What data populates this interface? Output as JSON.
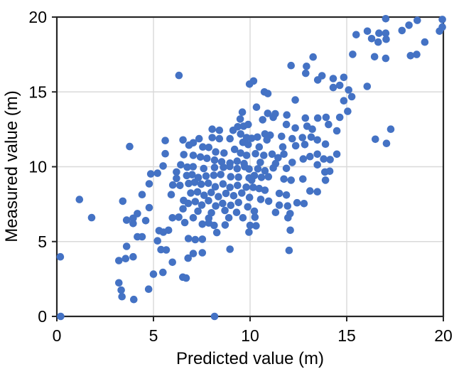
{
  "chart_data": {
    "type": "scatter",
    "title": "",
    "xlabel": "Predicted value (m)",
    "ylabel": "Measured value (m)",
    "xlim": [
      0,
      20
    ],
    "ylim": [
      0,
      20
    ],
    "x_ticks": [
      "0",
      "5",
      "10",
      "15",
      "20"
    ],
    "y_ticks": [
      "0",
      "5",
      "10",
      "15",
      "20"
    ],
    "grid": true,
    "legend": false,
    "marker": "circle",
    "marker_radius": 5.3,
    "colors": {
      "point": "#4472C4",
      "grid": "#D9D9D9",
      "axis": "#262626",
      "text": "#000000"
    },
    "points": [
      [
        0.2,
        0.0
      ],
      [
        0.18,
        3.98
      ],
      [
        1.17,
        7.81
      ],
      [
        1.8,
        6.6
      ],
      [
        8.16,
        0.0
      ],
      [
        6.32,
        16.1
      ],
      [
        12.12,
        16.76
      ],
      [
        12.92,
        16.71
      ],
      [
        13.26,
        17.33
      ],
      [
        12.88,
        16.24
      ],
      [
        9.97,
        15.52
      ],
      [
        10.18,
        15.73
      ],
      [
        10.74,
        15.0
      ],
      [
        10.92,
        14.89
      ],
      [
        12.34,
        14.46
      ],
      [
        10.33,
        13.98
      ],
      [
        9.6,
        13.65
      ],
      [
        10.91,
        13.57
      ],
      [
        11.3,
        13.54
      ],
      [
        11.9,
        13.46
      ],
      [
        17.02,
        19.89
      ],
      [
        18.65,
        19.78
      ],
      [
        19.95,
        19.84
      ],
      [
        19.95,
        19.33
      ],
      [
        18.22,
        19.46
      ],
      [
        17.86,
        19.1
      ],
      [
        19.8,
        19.06
      ],
      [
        15.49,
        18.82
      ],
      [
        16.07,
        19.06
      ],
      [
        16.67,
        18.92
      ],
      [
        17.02,
        18.92
      ],
      [
        16.29,
        18.56
      ],
      [
        16.63,
        18.33
      ],
      [
        17.04,
        18.52
      ],
      [
        19.04,
        18.33
      ],
      [
        15.31,
        17.51
      ],
      [
        16.44,
        17.35
      ],
      [
        17.02,
        17.24
      ],
      [
        18.3,
        17.42
      ],
      [
        18.62,
        17.5
      ],
      [
        13.72,
        16.08
      ],
      [
        13.5,
        15.8
      ],
      [
        14.3,
        15.89
      ],
      [
        14.85,
        15.97
      ],
      [
        14.64,
        15.44
      ],
      [
        14.3,
        15.29
      ],
      [
        15.1,
        15.13
      ],
      [
        16.06,
        15.37
      ],
      [
        15.26,
        14.68
      ],
      [
        14.85,
        14.41
      ],
      [
        15.05,
        13.7
      ],
      [
        13.5,
        13.25
      ],
      [
        13.93,
        13.3
      ],
      [
        14.64,
        13.3
      ],
      [
        14.06,
        12.82
      ],
      [
        14.49,
        12.4
      ],
      [
        13.48,
        11.79
      ],
      [
        13.9,
        11.51
      ],
      [
        16.48,
        11.84
      ],
      [
        17.28,
        12.51
      ],
      [
        17.06,
        11.56
      ],
      [
        13.48,
        10.84
      ],
      [
        13.81,
        10.52
      ],
      [
        14.14,
        10.48
      ],
      [
        14.49,
        10.84
      ],
      [
        13.48,
        10.13
      ],
      [
        13.87,
        9.65
      ],
      [
        14.12,
        9.7
      ],
      [
        13.9,
        9.1
      ],
      [
        13.48,
        8.33
      ],
      [
        3.77,
        11.35
      ],
      [
        5.61,
        11.75
      ],
      [
        6.53,
        11.79
      ],
      [
        5.61,
        10.87
      ],
      [
        6.57,
        10.81
      ],
      [
        5.5,
        10.05
      ],
      [
        6.41,
        10.13
      ],
      [
        4.86,
        9.52
      ],
      [
        5.21,
        9.57
      ],
      [
        6.19,
        9.65
      ],
      [
        6.19,
        9.22
      ],
      [
        4.78,
        8.86
      ],
      [
        6.0,
        8.78
      ],
      [
        6.37,
        8.75
      ],
      [
        5.92,
        8.14
      ],
      [
        4.41,
        8.14
      ],
      [
        3.41,
        7.7
      ],
      [
        6.56,
        7.75
      ],
      [
        4.78,
        7.27
      ],
      [
        4.17,
        6.87
      ],
      [
        6.53,
        7.19
      ],
      [
        3.61,
        6.43
      ],
      [
        3.95,
        6.56
      ],
      [
        3.95,
        6.21
      ],
      [
        4.6,
        6.4
      ],
      [
        5.98,
        6.59
      ],
      [
        6.31,
        6.63
      ],
      [
        6.62,
        6.27
      ],
      [
        4.17,
        5.32
      ],
      [
        4.41,
        5.32
      ],
      [
        5.29,
        5.73
      ],
      [
        5.51,
        5.63
      ],
      [
        5.78,
        5.76
      ],
      [
        5.21,
        5.05
      ],
      [
        5.39,
        4.46
      ],
      [
        5.66,
        4.44
      ],
      [
        3.61,
        4.68
      ],
      [
        3.21,
        3.73
      ],
      [
        3.56,
        3.86
      ],
      [
        3.95,
        3.98
      ],
      [
        5.98,
        3.62
      ],
      [
        6.52,
        2.62
      ],
      [
        5.0,
        2.82
      ],
      [
        5.49,
        2.94
      ],
      [
        3.21,
        2.24
      ],
      [
        3.33,
        1.76
      ],
      [
        3.37,
        1.32
      ],
      [
        3.98,
        1.13
      ],
      [
        4.75,
        1.82
      ],
      [
        7.06,
        6.59
      ],
      [
        7.86,
        6.56
      ],
      [
        8.9,
        6.59
      ],
      [
        9.63,
        6.59
      ],
      [
        10.25,
        6.63
      ],
      [
        11.96,
        6.59
      ],
      [
        7.53,
        6.16
      ],
      [
        7.86,
        6.24
      ],
      [
        8.14,
        6.08
      ],
      [
        8.71,
        6.11
      ],
      [
        10.0,
        6.08
      ],
      [
        10.31,
        6.05
      ],
      [
        8.28,
        5.6
      ],
      [
        9.94,
        5.63
      ],
      [
        12.08,
        5.76
      ],
      [
        6.81,
        5.2
      ],
      [
        7.16,
        5.13
      ],
      [
        7.53,
        5.16
      ],
      [
        8.96,
        4.49
      ],
      [
        12.02,
        4.41
      ],
      [
        7.06,
        4.2
      ],
      [
        7.53,
        4.25
      ],
      [
        6.79,
        3.89
      ],
      [
        6.69,
        2.56
      ],
      [
        8.04,
        12.51
      ],
      [
        8.41,
        12.43
      ],
      [
        8.04,
        11.95
      ],
      [
        8.41,
        11.87
      ],
      [
        7.36,
        11.87
      ],
      [
        7.06,
        11.6
      ],
      [
        6.84,
        11.44
      ],
      [
        7.55,
        11.32
      ],
      [
        7.86,
        11.29
      ],
      [
        8.22,
        10.99
      ],
      [
        8.65,
        10.91
      ],
      [
        8.96,
        11.87
      ],
      [
        9.12,
        12.43
      ],
      [
        9.36,
        12.67
      ],
      [
        9.66,
        12.71
      ],
      [
        9.9,
        12.82
      ],
      [
        9.51,
        12.19
      ],
      [
        9.82,
        11.95
      ],
      [
        9.63,
        11.63
      ],
      [
        9.9,
        11.48
      ],
      [
        9.2,
        11.16
      ],
      [
        9.51,
        10.91
      ],
      [
        9.82,
        10.76
      ],
      [
        7.06,
        10.76
      ],
      [
        7.43,
        10.65
      ],
      [
        7.77,
        10.56
      ],
      [
        8.16,
        10.44
      ],
      [
        8.53,
        10.33
      ],
      [
        8.96,
        10.24
      ],
      [
        9.33,
        10.37
      ],
      [
        9.69,
        10.21
      ],
      [
        9.49,
        13.19
      ],
      [
        10.65,
        13.14
      ],
      [
        11.88,
        12.82
      ],
      [
        12.34,
        12.59
      ],
      [
        12.95,
        12.71
      ],
      [
        13.22,
        12.51
      ],
      [
        10.38,
        11.98
      ],
      [
        10.77,
        12.19
      ],
      [
        11.04,
        12.11
      ],
      [
        10.87,
        11.79
      ],
      [
        10.08,
        11.9
      ],
      [
        11.63,
        12.03
      ],
      [
        12.18,
        11.87
      ],
      [
        12.71,
        11.95
      ],
      [
        13.16,
        11.98
      ],
      [
        11.69,
        11.32
      ],
      [
        12.36,
        11.4
      ],
      [
        12.83,
        11.48
      ],
      [
        11.75,
        10.84
      ],
      [
        10.47,
        11.32
      ],
      [
        10.28,
        10.87
      ],
      [
        10.71,
        10.76
      ],
      [
        11.14,
        10.84
      ],
      [
        11.45,
        10.6
      ],
      [
        10.53,
        10.29
      ],
      [
        11.32,
        10.21
      ],
      [
        12.18,
        10.29
      ],
      [
        12.75,
        10.52
      ],
      [
        13.1,
        10.68
      ],
      [
        11.2,
        13.3
      ],
      [
        12.86,
        13.25
      ],
      [
        6.75,
        9.97
      ],
      [
        7.05,
        10.0
      ],
      [
        7.6,
        9.88
      ],
      [
        8.16,
        9.95
      ],
      [
        8.62,
        9.96
      ],
      [
        8.95,
        10.02
      ],
      [
        9.33,
        9.87
      ],
      [
        9.72,
        10.0
      ],
      [
        9.95,
        9.85
      ],
      [
        6.72,
        9.41
      ],
      [
        7.0,
        9.47
      ],
      [
        7.32,
        9.28
      ],
      [
        7.72,
        9.38
      ],
      [
        8.12,
        9.43
      ],
      [
        8.48,
        9.48
      ],
      [
        9.0,
        9.33
      ],
      [
        9.4,
        9.3
      ],
      [
        9.95,
        9.25
      ],
      [
        6.82,
        8.88
      ],
      [
        7.13,
        8.96
      ],
      [
        7.47,
        8.83
      ],
      [
        7.84,
        8.9
      ],
      [
        8.2,
        8.66
      ],
      [
        8.6,
        8.85
      ],
      [
        8.96,
        8.62
      ],
      [
        9.35,
        8.75
      ],
      [
        9.8,
        8.63
      ],
      [
        6.93,
        8.24
      ],
      [
        7.28,
        8.32
      ],
      [
        7.62,
        8.09
      ],
      [
        7.99,
        8.28
      ],
      [
        8.36,
        8.0
      ],
      [
        8.75,
        8.22
      ],
      [
        9.15,
        8.06
      ],
      [
        9.57,
        8.24
      ],
      [
        9.97,
        7.95
      ],
      [
        6.8,
        7.55
      ],
      [
        7.16,
        7.67
      ],
      [
        7.5,
        7.44
      ],
      [
        7.85,
        7.73
      ],
      [
        8.22,
        7.38
      ],
      [
        8.58,
        7.55
      ],
      [
        9.0,
        7.42
      ],
      [
        9.4,
        7.61
      ],
      [
        9.88,
        7.32
      ],
      [
        7.3,
        7.03
      ],
      [
        8.0,
        6.92
      ],
      [
        8.7,
        7.08
      ],
      [
        9.3,
        6.95
      ],
      [
        10.4,
        9.86
      ],
      [
        10.77,
        9.73
      ],
      [
        11.2,
        9.92
      ],
      [
        11.88,
        9.89
      ],
      [
        10.22,
        9.41
      ],
      [
        10.59,
        9.29
      ],
      [
        10.95,
        9.33
      ],
      [
        11.75,
        9.18
      ],
      [
        12.12,
        9.1
      ],
      [
        12.73,
        9.18
      ],
      [
        10.08,
        9.1
      ],
      [
        10.16,
        8.62
      ],
      [
        10.47,
        8.54
      ],
      [
        10.77,
        8.43
      ],
      [
        11.51,
        8.22
      ],
      [
        11.88,
        8.11
      ],
      [
        13.1,
        8.38
      ],
      [
        10.55,
        7.82
      ],
      [
        10.96,
        7.7
      ],
      [
        11.51,
        7.43
      ],
      [
        11.94,
        7.38
      ],
      [
        12.43,
        7.59
      ],
      [
        12.79,
        7.54
      ],
      [
        10.22,
        7.03
      ],
      [
        11.32,
        6.95
      ],
      [
        12.07,
        6.87
      ]
    ]
  }
}
